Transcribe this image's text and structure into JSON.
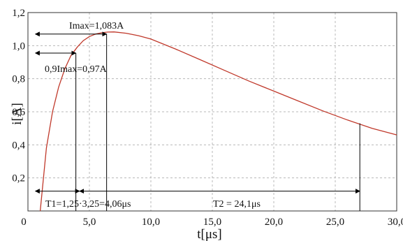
{
  "chart_data": {
    "type": "line",
    "xlabel": "t[μs]",
    "ylabel": "i[A]",
    "xlim": [
      0,
      30
    ],
    "ylim": [
      0,
      1.2
    ],
    "x_ticks": [
      {
        "value": 0,
        "label": "0"
      },
      {
        "value": 5,
        "label": "5,0"
      },
      {
        "value": 10,
        "label": "10,0"
      },
      {
        "value": 15,
        "label": "15,0"
      },
      {
        "value": 20,
        "label": "20,0"
      },
      {
        "value": 25,
        "label": "25,0"
      },
      {
        "value": 30,
        "label": "30,0"
      }
    ],
    "y_ticks": [
      {
        "value": 0.2,
        "label": "0,2"
      },
      {
        "value": 0.4,
        "label": "0,4"
      },
      {
        "value": 0.6,
        "label": "0,6"
      },
      {
        "value": 0.8,
        "label": "0,8"
      },
      {
        "value": 1.0,
        "label": "1,0"
      },
      {
        "value": 1.2,
        "label": "1,2"
      }
    ],
    "grid": true,
    "series": [
      {
        "color": "#c0392b",
        "x": [
          1.0,
          1.5,
          2.0,
          2.5,
          3.0,
          3.5,
          4.0,
          4.5,
          5.0,
          5.5,
          6.0,
          6.5,
          7.0,
          8.0,
          9.0,
          10.0,
          12.0,
          14.0,
          16.0,
          18.0,
          20.0,
          22.0,
          24.0,
          26.0,
          28.0,
          30.0
        ],
        "y": [
          0.0,
          0.38,
          0.6,
          0.75,
          0.86,
          0.94,
          0.99,
          1.03,
          1.055,
          1.07,
          1.078,
          1.082,
          1.083,
          1.075,
          1.06,
          1.04,
          0.98,
          0.915,
          0.85,
          0.785,
          0.725,
          0.665,
          0.605,
          0.55,
          0.5,
          0.46
        ]
      }
    ],
    "annotations": [
      {
        "id": "imax",
        "text": "Imax=1,083A",
        "arrow_y": 1.07,
        "x_from": 0.6,
        "x_to": 6.4,
        "drop_x": 6.4
      },
      {
        "id": "imax09",
        "text": "0,9Imax=0,97A",
        "arrow_y": 0.955,
        "x_from": 0.6,
        "x_to": 3.9
      },
      {
        "id": "t1",
        "text": "T1=1,25·3,25=4,06μs",
        "arrow_y": 0.12,
        "x_from": 0.6,
        "x_to": 4.2
      },
      {
        "id": "t2",
        "text": "T2 = 24,1μs",
        "arrow_y": 0.12,
        "x_from": 4.2,
        "x_to": 27.0,
        "drop_x": 27.0,
        "drop_y": 0.53
      }
    ]
  }
}
